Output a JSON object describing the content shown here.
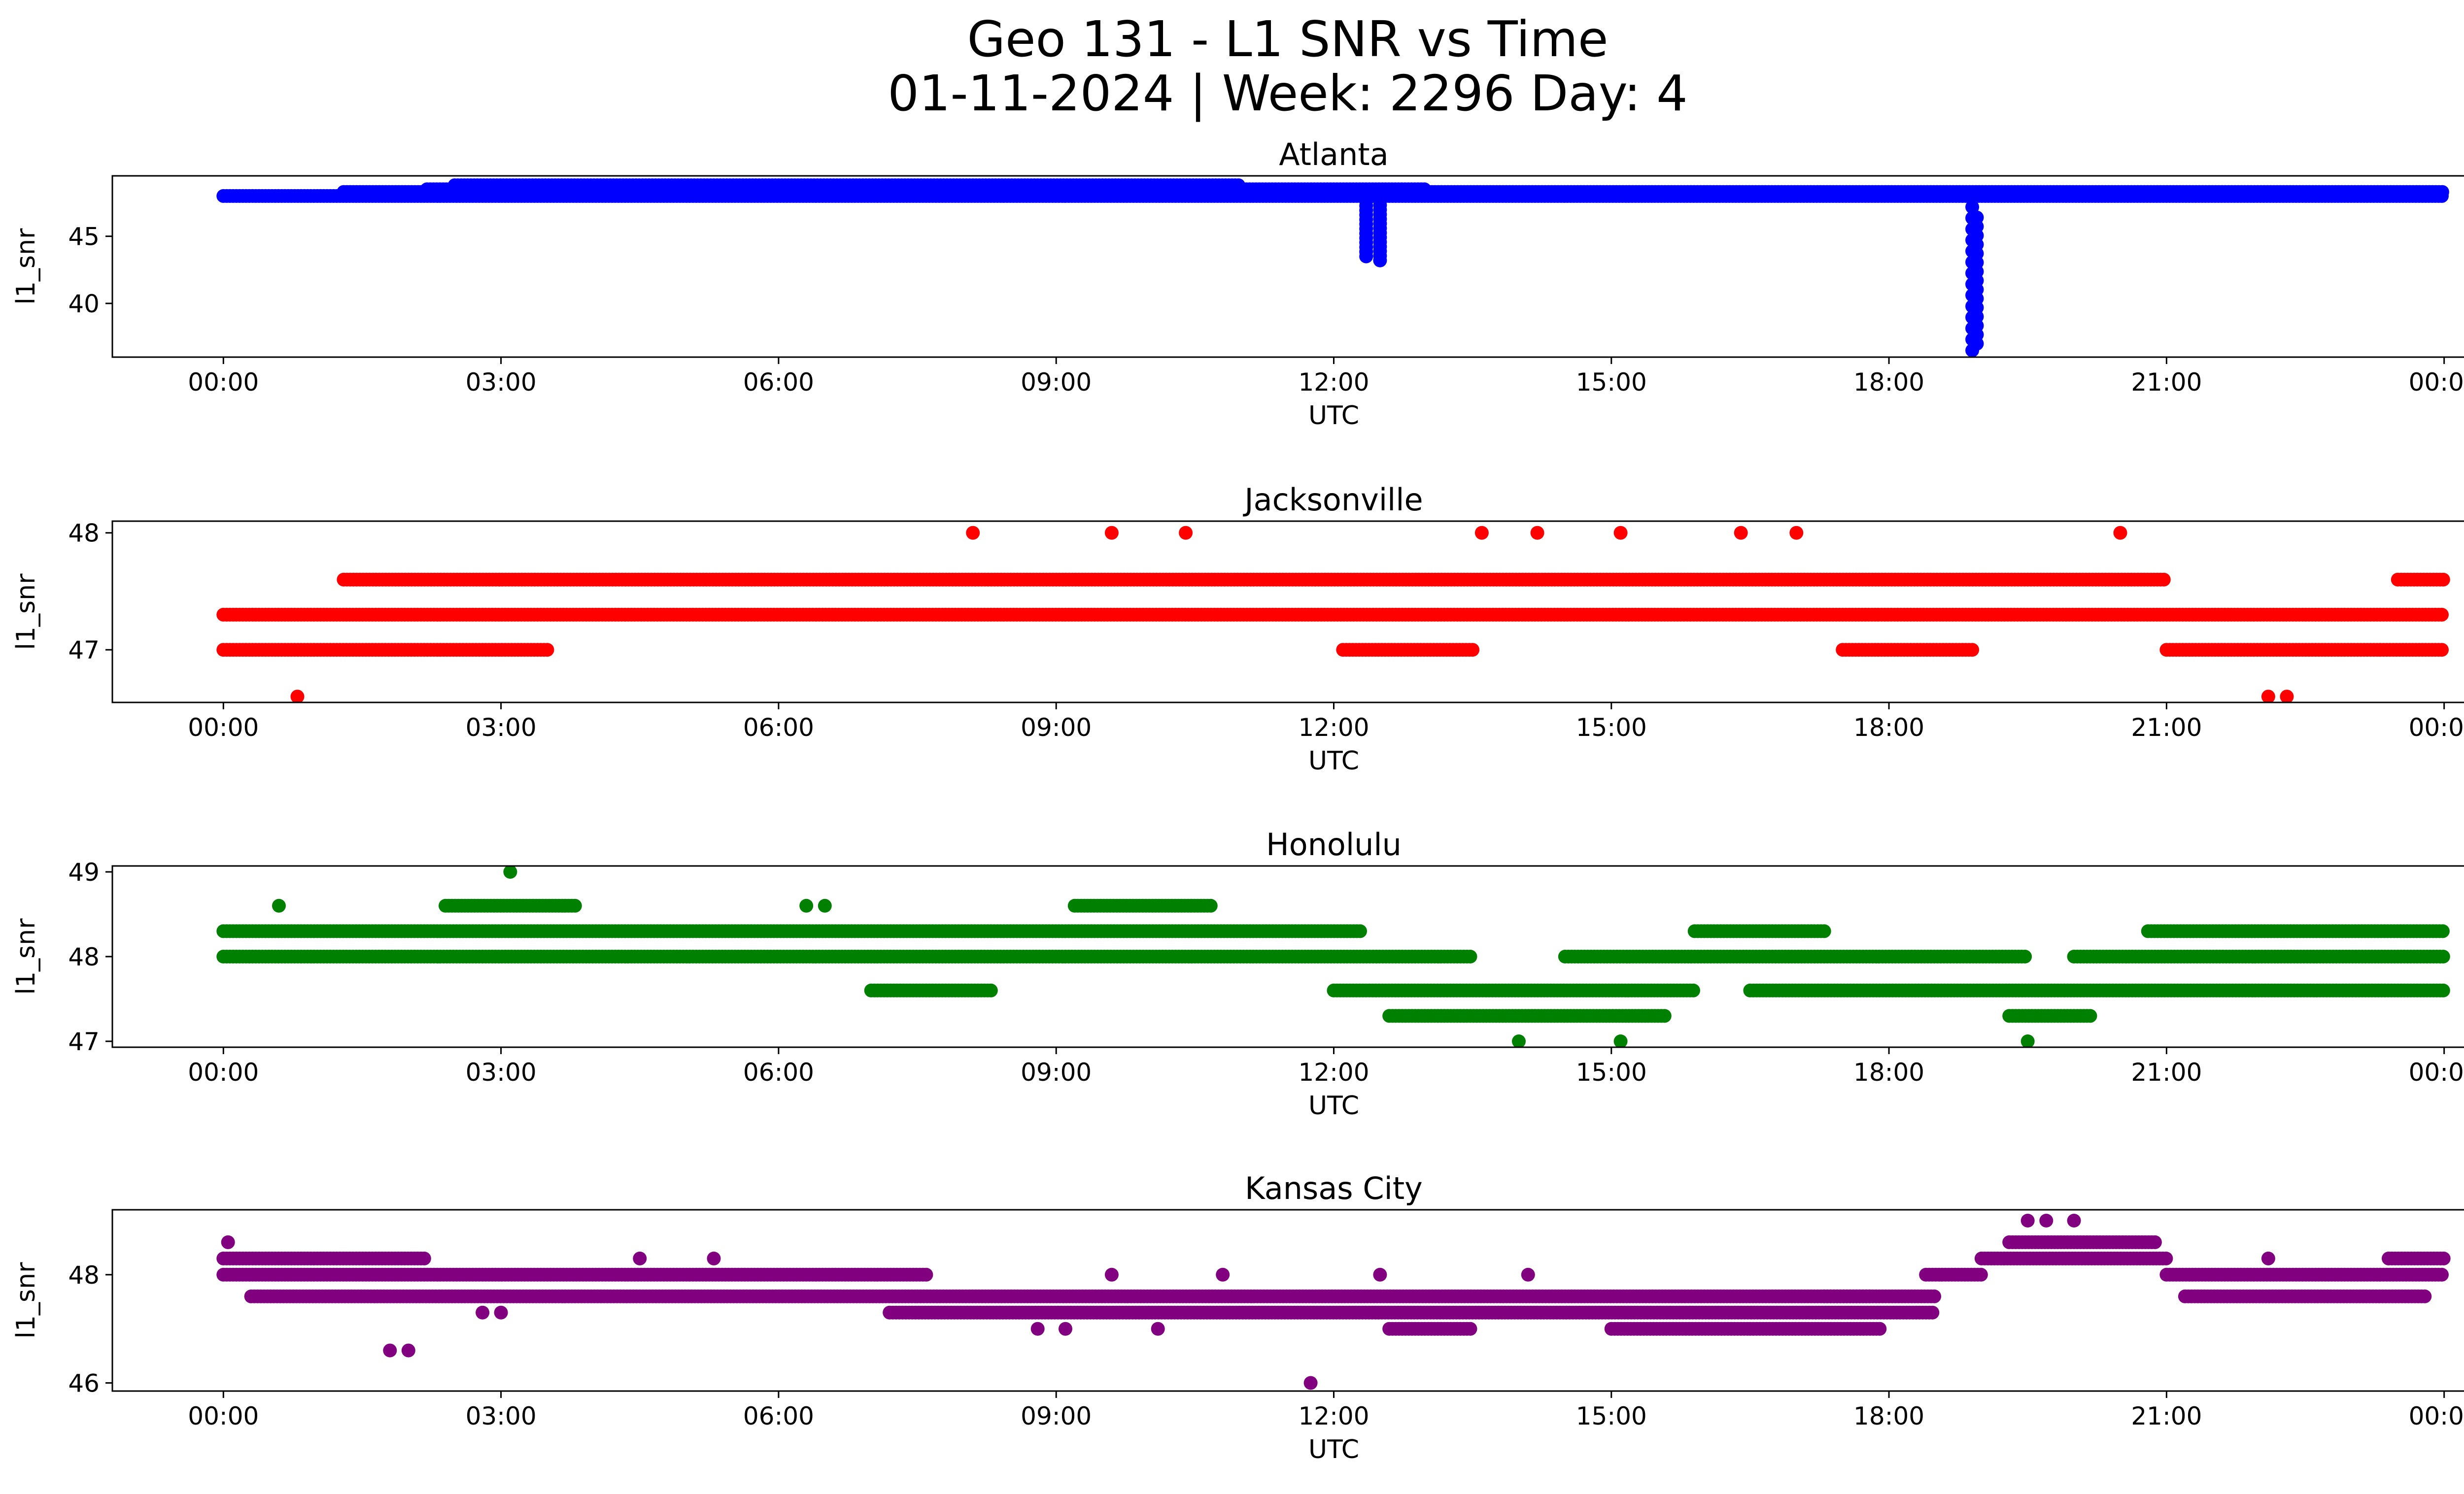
{
  "figure": {
    "title_line1": "Geo 131 - L1 SNR vs Time",
    "title_line2": "01-11-2024 | Week: 2296 Day: 4"
  },
  "chart_data": [
    {
      "type": "scatter",
      "title": "Atlanta",
      "xlabel": "UTC",
      "ylabel": "l1_snr",
      "color": "#0000ff",
      "x_tick_labels": [
        "00:00",
        "03:00",
        "06:00",
        "09:00",
        "12:00",
        "15:00",
        "18:00",
        "21:00",
        "00:00"
      ],
      "xlim_hours": [
        -1.2,
        25.2
      ],
      "ylim": [
        36,
        49.5
      ],
      "yticks": [
        40,
        45
      ],
      "grid": false,
      "bands": [
        {
          "y": 48.0,
          "start": 0.0,
          "end": 24.0
        },
        {
          "y": 48.3,
          "start": 1.3,
          "end": 24.0
        },
        {
          "y": 48.5,
          "start": 2.2,
          "end": 13.0
        },
        {
          "y": 48.8,
          "start": 2.5,
          "end": 11.0
        }
      ],
      "bursts": [
        {
          "x": 12.35,
          "y_min": 43.5,
          "y_max": 48.3
        },
        {
          "x": 12.5,
          "y_min": 43.2,
          "y_max": 48.0
        },
        {
          "x": 18.9,
          "y_min": 36.5,
          "y_max": 48.0
        },
        {
          "x": 18.95,
          "y_min": 37.0,
          "y_max": 46.4
        }
      ]
    },
    {
      "type": "scatter",
      "title": "Jacksonville",
      "xlabel": "UTC",
      "ylabel": "l1_snr",
      "color": "#ff0000",
      "x_tick_labels": [
        "00:00",
        "03:00",
        "06:00",
        "09:00",
        "12:00",
        "15:00",
        "18:00",
        "21:00",
        "00:00"
      ],
      "xlim_hours": [
        -1.2,
        25.2
      ],
      "ylim": [
        46.55,
        48.1
      ],
      "yticks": [
        47,
        48
      ],
      "grid": false,
      "bands": [
        {
          "y": 47.3,
          "start": 0.0,
          "end": 24.0
        },
        {
          "y": 47.6,
          "start": 1.3,
          "end": 21.0
        },
        {
          "y": 47.6,
          "start": 23.5,
          "end": 24.0
        },
        {
          "y": 47.0,
          "start": 0.0,
          "end": 3.5
        },
        {
          "y": 47.0,
          "start": 12.1,
          "end": 13.5
        },
        {
          "y": 47.0,
          "start": 17.5,
          "end": 18.9
        },
        {
          "y": 47.0,
          "start": 21.0,
          "end": 24.0
        }
      ],
      "points": [
        {
          "x": 0.8,
          "y": 46.6
        },
        {
          "x": 22.1,
          "y": 46.6
        },
        {
          "x": 22.3,
          "y": 46.6
        },
        {
          "x": 8.1,
          "y": 48.0
        },
        {
          "x": 9.6,
          "y": 48.0
        },
        {
          "x": 10.4,
          "y": 48.0
        },
        {
          "x": 13.6,
          "y": 48.0
        },
        {
          "x": 14.2,
          "y": 48.0
        },
        {
          "x": 15.1,
          "y": 48.0
        },
        {
          "x": 16.4,
          "y": 48.0
        },
        {
          "x": 17.0,
          "y": 48.0
        },
        {
          "x": 20.5,
          "y": 48.0
        }
      ]
    },
    {
      "type": "scatter",
      "title": "Honolulu",
      "xlabel": "UTC",
      "ylabel": "l1_snr",
      "color": "#008000",
      "x_tick_labels": [
        "00:00",
        "03:00",
        "06:00",
        "09:00",
        "12:00",
        "15:00",
        "18:00",
        "21:00",
        "00:00"
      ],
      "xlim_hours": [
        -1.2,
        25.2
      ],
      "ylim": [
        46.93,
        49.07
      ],
      "yticks": [
        47,
        48,
        49
      ],
      "grid": false,
      "bands": [
        {
          "y": 48.0,
          "start": 0.0,
          "end": 13.5
        },
        {
          "y": 48.0,
          "start": 14.5,
          "end": 19.5
        },
        {
          "y": 48.0,
          "start": 20.0,
          "end": 24.0
        },
        {
          "y": 48.3,
          "start": 0.0,
          "end": 12.3
        },
        {
          "y": 48.3,
          "start": 15.9,
          "end": 17.3
        },
        {
          "y": 48.3,
          "start": 20.8,
          "end": 24.0
        },
        {
          "y": 47.6,
          "start": 12.0,
          "end": 15.9
        },
        {
          "y": 47.6,
          "start": 16.5,
          "end": 24.0
        },
        {
          "y": 47.3,
          "start": 12.6,
          "end": 15.6
        },
        {
          "y": 47.3,
          "start": 19.3,
          "end": 20.2
        },
        {
          "y": 48.6,
          "start": 2.4,
          "end": 3.8
        },
        {
          "y": 48.6,
          "start": 9.2,
          "end": 10.7
        },
        {
          "y": 47.6,
          "start": 7.0,
          "end": 8.3
        }
      ],
      "points": [
        {
          "x": 3.1,
          "y": 49.0
        },
        {
          "x": 14.0,
          "y": 47.0
        },
        {
          "x": 15.1,
          "y": 47.0
        },
        {
          "x": 19.5,
          "y": 47.0
        },
        {
          "x": 0.6,
          "y": 48.6
        },
        {
          "x": 6.3,
          "y": 48.6
        },
        {
          "x": 6.5,
          "y": 48.6
        }
      ]
    },
    {
      "type": "scatter",
      "title": "Kansas City",
      "xlabel": "UTC",
      "ylabel": "l1_snr",
      "color": "#800080",
      "x_tick_labels": [
        "00:00",
        "03:00",
        "06:00",
        "09:00",
        "12:00",
        "15:00",
        "18:00",
        "21:00",
        "00:00"
      ],
      "xlim_hours": [
        -1.2,
        25.2
      ],
      "ylim": [
        45.85,
        49.2
      ],
      "yticks": [
        46,
        48
      ],
      "grid": false,
      "bands": [
        {
          "y": 48.0,
          "start": 0.0,
          "end": 7.6
        },
        {
          "y": 48.3,
          "start": 0.0,
          "end": 2.2
        },
        {
          "y": 47.6,
          "start": 0.3,
          "end": 7.5
        },
        {
          "y": 47.6,
          "start": 7.5,
          "end": 17.8
        },
        {
          "y": 47.3,
          "start": 7.2,
          "end": 18.5
        },
        {
          "y": 47.0,
          "start": 12.6,
          "end": 13.5
        },
        {
          "y": 47.0,
          "start": 15.0,
          "end": 16.5
        },
        {
          "y": 47.0,
          "start": 16.5,
          "end": 17.9
        },
        {
          "y": 47.6,
          "start": 17.3,
          "end": 18.5
        },
        {
          "y": 48.0,
          "start": 18.4,
          "end": 19.0
        },
        {
          "y": 48.3,
          "start": 19.0,
          "end": 21.0
        },
        {
          "y": 48.6,
          "start": 19.3,
          "end": 20.9
        },
        {
          "y": 48.0,
          "start": 21.0,
          "end": 24.0
        },
        {
          "y": 47.6,
          "start": 21.2,
          "end": 23.8
        },
        {
          "y": 48.3,
          "start": 23.4,
          "end": 24.0
        }
      ],
      "points": [
        {
          "x": 0.05,
          "y": 48.6
        },
        {
          "x": 1.8,
          "y": 46.6
        },
        {
          "x": 2.0,
          "y": 46.6
        },
        {
          "x": 2.8,
          "y": 47.3
        },
        {
          "x": 3.0,
          "y": 47.3
        },
        {
          "x": 4.5,
          "y": 48.3
        },
        {
          "x": 5.3,
          "y": 48.3
        },
        {
          "x": 8.8,
          "y": 47.0
        },
        {
          "x": 9.1,
          "y": 47.0
        },
        {
          "x": 9.6,
          "y": 48.0
        },
        {
          "x": 10.1,
          "y": 47.0
        },
        {
          "x": 10.8,
          "y": 48.0
        },
        {
          "x": 11.75,
          "y": 46.0
        },
        {
          "x": 12.5,
          "y": 48.0
        },
        {
          "x": 14.1,
          "y": 48.0
        },
        {
          "x": 19.5,
          "y": 49.0
        },
        {
          "x": 19.7,
          "y": 49.0
        },
        {
          "x": 20.0,
          "y": 49.0
        },
        {
          "x": 22.1,
          "y": 48.3
        }
      ]
    }
  ]
}
